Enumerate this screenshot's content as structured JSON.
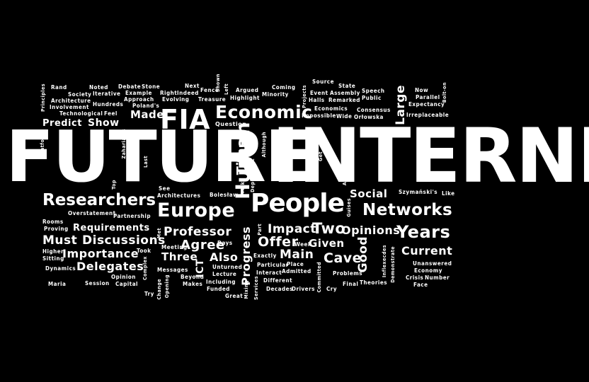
{
  "words": [
    "FUTURE",
    "INTERNET",
    "FIA",
    "Economic",
    "People",
    "Europe",
    "Researchers",
    "Networks",
    "Years",
    "Human",
    "Time",
    "Professor",
    "Requirements",
    "Discussions",
    "Importance",
    "Delegates",
    "Impact",
    "Two",
    "Opinions",
    "Must",
    "Agree",
    "Offer",
    "Given",
    "Also",
    "Main",
    "Cave",
    "Progress",
    "Good",
    "Current",
    "Three",
    "ICT",
    "Social",
    "Large",
    "Made",
    "Predict",
    "Show",
    "Question",
    "Rand",
    "Principles",
    "Noted",
    "Society",
    "Architecture",
    "Iterative",
    "Debate",
    "Stone",
    "Example",
    "Approach",
    "Poland's",
    "Right",
    "Indeed",
    "Next",
    "Fence",
    "Shown",
    "Treasure",
    "Argued",
    "Left",
    "Highlight",
    "Minority",
    "Coming",
    "Projects",
    "Source",
    "State",
    "Speech",
    "Event",
    "Assembly",
    "Halls",
    "Remarked",
    "Public",
    "Now",
    "Parallel",
    "Bolt-on",
    "Expectancy",
    "Irreplaceable",
    "Consensus",
    "Impossible",
    "Wide",
    "Orłowska",
    "Economics",
    "Involvement",
    "Hundreds",
    "Evolving",
    "Technological",
    "Feel",
    "Platform",
    "Top",
    "Last",
    "Recovery",
    "Zahariadis",
    "See",
    "Architectures",
    "Bolesław",
    "Make",
    "Deployment",
    "Although",
    "Get",
    "Asset",
    "Guises",
    "Szymański's",
    "Like",
    "Overstatement",
    "Partnership",
    "Proving",
    "Rooms",
    "Met",
    "Days",
    "Meeting",
    "Part",
    "Week",
    "Higher",
    "Sitting",
    "Dynamics",
    "Complex",
    "Took",
    "Beyond",
    "Exactly",
    "Inflexecdes",
    "Unanswered",
    "Economy",
    "Crisis",
    "Number",
    "Face",
    "Maria",
    "Session",
    "Opinion",
    "Capital",
    "Messages",
    "Change",
    "Opening",
    "Makes",
    "Unturned",
    "Lecture",
    "Including",
    "Funded",
    "Great",
    "Mixing",
    "Services",
    "Interact",
    "Admitted",
    "Particular",
    "Place",
    "Different",
    "Decades",
    "Drivers",
    "Committed",
    "Problems",
    "Final",
    "Cry",
    "Theories",
    "Demonstrate",
    "Try"
  ]
}
